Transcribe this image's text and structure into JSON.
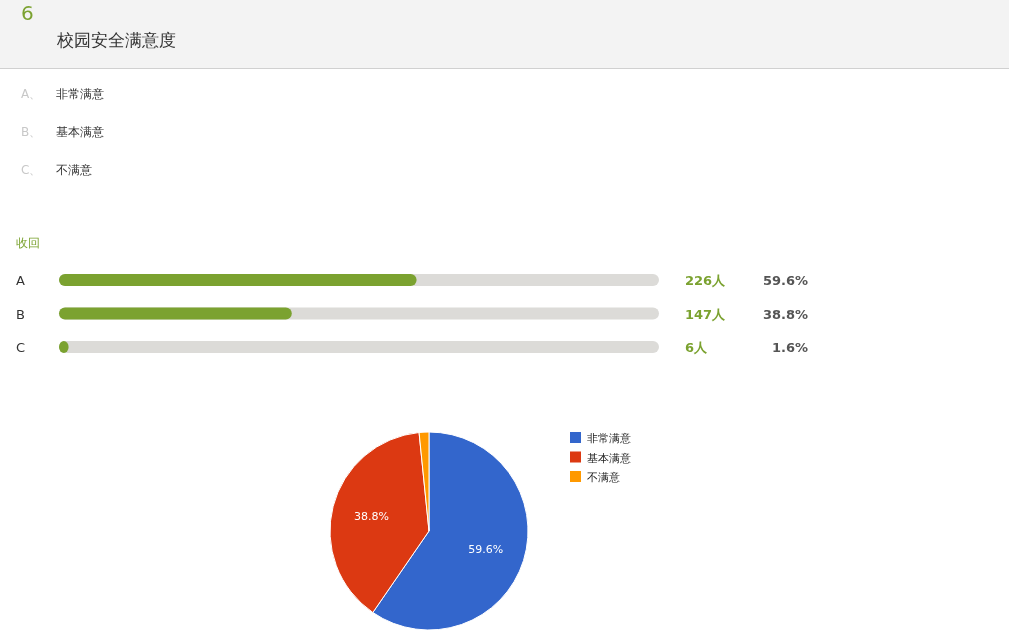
{
  "chart_data": [
    {
      "type": "other",
      "title": "校园安全满意度",
      "subtitle": "6",
      "annotations": [
        "A、",
        "非常满意",
        "B、",
        "基本满意",
        "C、",
        "不满意"
      ]
    },
    {
      "type": "bar",
      "orientation": "horizontal",
      "title": "收回",
      "categories": [
        "A",
        "B",
        "C"
      ],
      "values": [
        59.6,
        38.8,
        1.6
      ],
      "color": "#7ba230",
      "xlim": [
        0,
        100
      ],
      "tick_labels": "y",
      "value_labels": [
        "59.6%",
        "38.8%",
        "1.6%"
      ],
      "annotations": [
        "226人",
        "147人",
        "6人"
      ]
    },
    {
      "type": "pie",
      "categories": [
        "非常满意",
        "基本满意",
        "不满意"
      ],
      "values": [
        59.6,
        38.8,
        1.6
      ],
      "colors": [
        "#3366cc",
        "#dc3912",
        "#ff9900"
      ],
      "value_labels": [
        "59.6%",
        "38.8%",
        null
      ],
      "legend": "right"
    }
  ]
}
